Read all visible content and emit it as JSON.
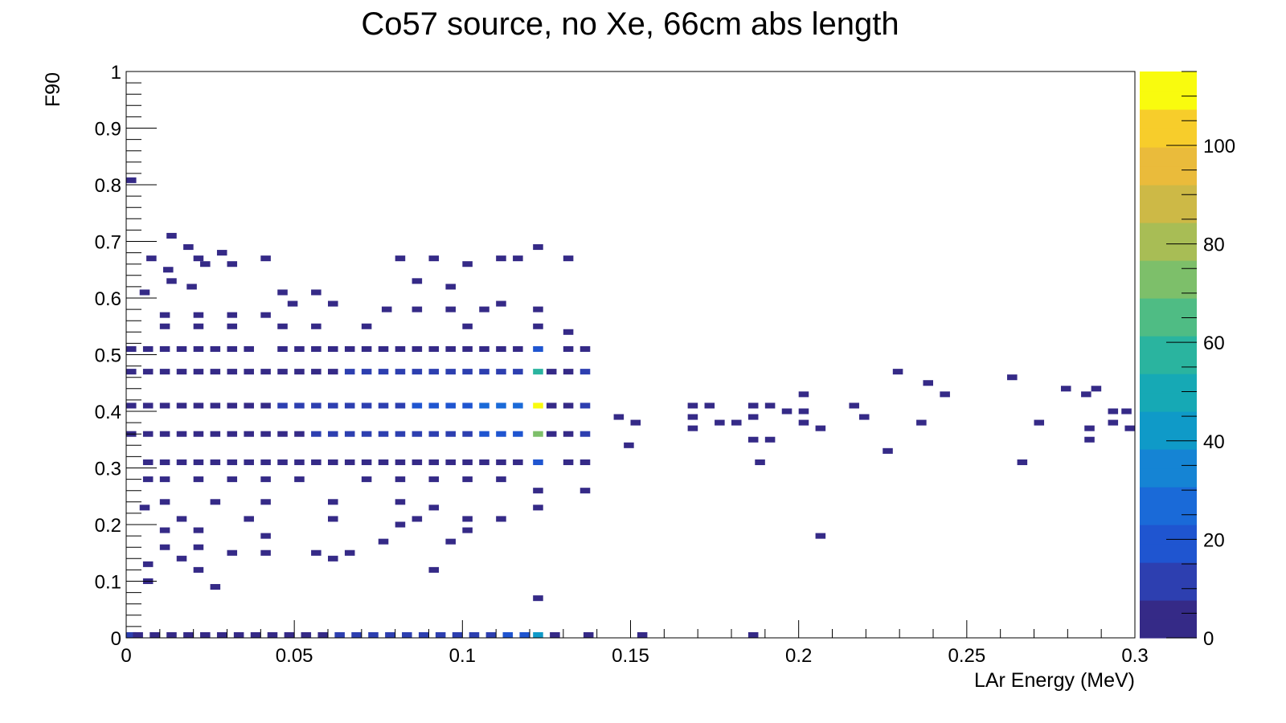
{
  "chart_data": {
    "type": "heatmap",
    "title": "Co57 source, no Xe, 66cm abs length",
    "xlabel": "LAr Energy (MeV)",
    "ylabel": "F90",
    "xlim": [
      0,
      0.3
    ],
    "ylim": [
      0,
      1
    ],
    "zlim": [
      0,
      115
    ],
    "x_ticks": [
      "0",
      "0.05",
      "0.1",
      "0.15",
      "0.2",
      "0.25",
      "0.3"
    ],
    "y_ticks": [
      "0",
      "0.1",
      "0.2",
      "0.3",
      "0.4",
      "0.5",
      "0.6",
      "0.7",
      "0.8",
      "0.9",
      "1"
    ],
    "z_ticks": [
      "0",
      "20",
      "40",
      "60",
      "80",
      "100"
    ],
    "colormap": [
      "#352a87",
      "#2d3fb0",
      "#1f55d0",
      "#1a6ad8",
      "#1584d4",
      "#0f9ac8",
      "#16a9b5",
      "#2ab49f",
      "#4fbc84",
      "#7dbf6a",
      "#a8bd55",
      "#cdb946",
      "#eabb3b",
      "#f7cd2b",
      "#f9fb0e"
    ],
    "grid": false,
    "legend": "colorbar-right",
    "bins": [
      [
        0.0,
        0.803,
        3
      ],
      [
        0.0,
        0.0,
        8
      ],
      [
        0.012,
        0.705,
        2
      ],
      [
        0.017,
        0.685,
        2
      ],
      [
        0.006,
        0.665,
        2
      ],
      [
        0.02,
        0.665,
        2
      ],
      [
        0.022,
        0.655,
        2
      ],
      [
        0.03,
        0.655,
        2
      ],
      [
        0.011,
        0.645,
        2
      ],
      [
        0.027,
        0.675,
        2
      ],
      [
        0.04,
        0.665,
        2
      ],
      [
        0.08,
        0.665,
        3
      ],
      [
        0.09,
        0.665,
        3
      ],
      [
        0.11,
        0.665,
        3
      ],
      [
        0.115,
        0.665,
        3
      ],
      [
        0.121,
        0.685,
        3
      ],
      [
        0.13,
        0.665,
        3
      ],
      [
        0.012,
        0.625,
        2
      ],
      [
        0.018,
        0.615,
        2
      ],
      [
        0.045,
        0.605,
        2
      ],
      [
        0.055,
        0.605,
        2
      ],
      [
        0.085,
        0.625,
        2
      ],
      [
        0.095,
        0.615,
        2
      ],
      [
        0.1,
        0.655,
        2
      ],
      [
        0.004,
        0.605,
        2
      ],
      [
        0.048,
        0.585,
        2
      ],
      [
        0.06,
        0.585,
        2
      ],
      [
        0.11,
        0.585,
        2
      ],
      [
        0.076,
        0.575,
        2
      ],
      [
        0.085,
        0.575,
        2
      ],
      [
        0.095,
        0.575,
        2
      ],
      [
        0.105,
        0.575,
        2
      ],
      [
        0.121,
        0.575,
        3
      ],
      [
        0.01,
        0.565,
        3
      ],
      [
        0.02,
        0.565,
        3
      ],
      [
        0.03,
        0.565,
        3
      ],
      [
        0.04,
        0.565,
        3
      ],
      [
        0.01,
        0.545,
        3
      ],
      [
        0.02,
        0.545,
        4
      ],
      [
        0.03,
        0.545,
        3
      ],
      [
        0.045,
        0.545,
        3
      ],
      [
        0.055,
        0.545,
        3
      ],
      [
        0.07,
        0.545,
        3
      ],
      [
        0.1,
        0.545,
        3
      ],
      [
        0.121,
        0.545,
        3
      ],
      [
        0.13,
        0.535,
        3
      ],
      [
        0.0,
        0.505,
        4
      ],
      [
        0.005,
        0.505,
        5
      ],
      [
        0.01,
        0.505,
        5
      ],
      [
        0.015,
        0.505,
        4
      ],
      [
        0.02,
        0.505,
        5
      ],
      [
        0.025,
        0.505,
        4
      ],
      [
        0.03,
        0.505,
        4
      ],
      [
        0.035,
        0.505,
        4
      ],
      [
        0.045,
        0.505,
        4
      ],
      [
        0.05,
        0.505,
        4
      ],
      [
        0.055,
        0.505,
        4
      ],
      [
        0.06,
        0.505,
        4
      ],
      [
        0.065,
        0.505,
        5
      ],
      [
        0.07,
        0.505,
        5
      ],
      [
        0.075,
        0.505,
        5
      ],
      [
        0.08,
        0.505,
        6
      ],
      [
        0.085,
        0.505,
        6
      ],
      [
        0.09,
        0.505,
        6
      ],
      [
        0.095,
        0.505,
        6
      ],
      [
        0.1,
        0.505,
        6
      ],
      [
        0.105,
        0.505,
        6
      ],
      [
        0.11,
        0.505,
        7
      ],
      [
        0.115,
        0.505,
        7
      ],
      [
        0.121,
        0.505,
        20
      ],
      [
        0.13,
        0.505,
        4
      ],
      [
        0.135,
        0.505,
        3
      ],
      [
        0.0,
        0.465,
        4
      ],
      [
        0.005,
        0.465,
        5
      ],
      [
        0.01,
        0.465,
        5
      ],
      [
        0.015,
        0.465,
        5
      ],
      [
        0.02,
        0.465,
        5
      ],
      [
        0.025,
        0.465,
        5
      ],
      [
        0.03,
        0.465,
        5
      ],
      [
        0.035,
        0.465,
        5
      ],
      [
        0.04,
        0.465,
        5
      ],
      [
        0.045,
        0.465,
        6
      ],
      [
        0.05,
        0.465,
        6
      ],
      [
        0.055,
        0.465,
        7
      ],
      [
        0.06,
        0.465,
        7
      ],
      [
        0.065,
        0.465,
        8
      ],
      [
        0.07,
        0.465,
        8
      ],
      [
        0.075,
        0.465,
        9
      ],
      [
        0.08,
        0.465,
        10
      ],
      [
        0.085,
        0.465,
        10
      ],
      [
        0.09,
        0.465,
        11
      ],
      [
        0.095,
        0.465,
        12
      ],
      [
        0.1,
        0.465,
        12
      ],
      [
        0.105,
        0.465,
        13
      ],
      [
        0.11,
        0.465,
        13
      ],
      [
        0.115,
        0.465,
        14
      ],
      [
        0.121,
        0.465,
        60
      ],
      [
        0.125,
        0.465,
        5
      ],
      [
        0.13,
        0.465,
        5
      ],
      [
        0.135,
        0.465,
        10
      ],
      [
        0.0,
        0.405,
        4
      ],
      [
        0.005,
        0.405,
        5
      ],
      [
        0.01,
        0.405,
        6
      ],
      [
        0.015,
        0.405,
        6
      ],
      [
        0.02,
        0.405,
        6
      ],
      [
        0.025,
        0.405,
        6
      ],
      [
        0.03,
        0.405,
        7
      ],
      [
        0.035,
        0.405,
        7
      ],
      [
        0.04,
        0.405,
        7
      ],
      [
        0.045,
        0.405,
        8
      ],
      [
        0.05,
        0.405,
        8
      ],
      [
        0.055,
        0.405,
        9
      ],
      [
        0.06,
        0.405,
        10
      ],
      [
        0.065,
        0.405,
        11
      ],
      [
        0.07,
        0.405,
        12
      ],
      [
        0.075,
        0.405,
        13
      ],
      [
        0.08,
        0.405,
        14
      ],
      [
        0.085,
        0.405,
        16
      ],
      [
        0.09,
        0.405,
        18
      ],
      [
        0.095,
        0.405,
        20
      ],
      [
        0.1,
        0.405,
        22
      ],
      [
        0.105,
        0.405,
        24
      ],
      [
        0.11,
        0.405,
        26
      ],
      [
        0.115,
        0.405,
        30
      ],
      [
        0.121,
        0.405,
        115
      ],
      [
        0.125,
        0.405,
        6
      ],
      [
        0.13,
        0.405,
        6
      ],
      [
        0.135,
        0.405,
        12
      ],
      [
        0.0,
        0.355,
        4
      ],
      [
        0.005,
        0.355,
        5
      ],
      [
        0.01,
        0.355,
        5
      ],
      [
        0.015,
        0.355,
        5
      ],
      [
        0.02,
        0.355,
        6
      ],
      [
        0.025,
        0.355,
        6
      ],
      [
        0.03,
        0.355,
        6
      ],
      [
        0.035,
        0.355,
        6
      ],
      [
        0.04,
        0.355,
        6
      ],
      [
        0.045,
        0.355,
        7
      ],
      [
        0.05,
        0.355,
        7
      ],
      [
        0.055,
        0.355,
        8
      ],
      [
        0.06,
        0.355,
        8
      ],
      [
        0.065,
        0.355,
        9
      ],
      [
        0.07,
        0.355,
        10
      ],
      [
        0.075,
        0.355,
        11
      ],
      [
        0.08,
        0.355,
        12
      ],
      [
        0.085,
        0.355,
        12
      ],
      [
        0.09,
        0.355,
        13
      ],
      [
        0.095,
        0.355,
        14
      ],
      [
        0.1,
        0.355,
        15
      ],
      [
        0.105,
        0.355,
        16
      ],
      [
        0.11,
        0.355,
        17
      ],
      [
        0.115,
        0.355,
        18
      ],
      [
        0.121,
        0.355,
        70
      ],
      [
        0.125,
        0.355,
        4
      ],
      [
        0.13,
        0.355,
        4
      ],
      [
        0.135,
        0.355,
        8
      ],
      [
        0.005,
        0.305,
        3
      ],
      [
        0.01,
        0.305,
        4
      ],
      [
        0.015,
        0.305,
        4
      ],
      [
        0.02,
        0.305,
        4
      ],
      [
        0.025,
        0.305,
        4
      ],
      [
        0.03,
        0.305,
        4
      ],
      [
        0.035,
        0.305,
        4
      ],
      [
        0.04,
        0.305,
        4
      ],
      [
        0.045,
        0.305,
        4
      ],
      [
        0.05,
        0.305,
        4
      ],
      [
        0.055,
        0.305,
        5
      ],
      [
        0.06,
        0.305,
        5
      ],
      [
        0.065,
        0.305,
        5
      ],
      [
        0.07,
        0.305,
        5
      ],
      [
        0.075,
        0.305,
        5
      ],
      [
        0.08,
        0.305,
        6
      ],
      [
        0.085,
        0.305,
        6
      ],
      [
        0.09,
        0.305,
        6
      ],
      [
        0.095,
        0.305,
        6
      ],
      [
        0.1,
        0.305,
        6
      ],
      [
        0.105,
        0.305,
        7
      ],
      [
        0.11,
        0.305,
        7
      ],
      [
        0.115,
        0.305,
        7
      ],
      [
        0.121,
        0.305,
        20
      ],
      [
        0.13,
        0.305,
        3
      ],
      [
        0.135,
        0.305,
        4
      ],
      [
        0.005,
        0.275,
        3
      ],
      [
        0.01,
        0.275,
        3
      ],
      [
        0.02,
        0.275,
        3
      ],
      [
        0.03,
        0.275,
        3
      ],
      [
        0.04,
        0.275,
        3
      ],
      [
        0.05,
        0.275,
        3
      ],
      [
        0.07,
        0.275,
        3
      ],
      [
        0.08,
        0.275,
        3
      ],
      [
        0.09,
        0.275,
        3
      ],
      [
        0.1,
        0.275,
        3
      ],
      [
        0.11,
        0.275,
        3
      ],
      [
        0.121,
        0.255,
        3
      ],
      [
        0.135,
        0.255,
        3
      ],
      [
        0.01,
        0.235,
        2
      ],
      [
        0.025,
        0.235,
        2
      ],
      [
        0.04,
        0.235,
        2
      ],
      [
        0.06,
        0.235,
        2
      ],
      [
        0.08,
        0.235,
        2
      ],
      [
        0.09,
        0.225,
        2
      ],
      [
        0.004,
        0.225,
        2
      ],
      [
        0.015,
        0.205,
        2
      ],
      [
        0.035,
        0.205,
        2
      ],
      [
        0.06,
        0.205,
        2
      ],
      [
        0.085,
        0.205,
        2
      ],
      [
        0.1,
        0.205,
        2
      ],
      [
        0.11,
        0.205,
        2
      ],
      [
        0.121,
        0.225,
        2
      ],
      [
        0.01,
        0.185,
        2
      ],
      [
        0.02,
        0.185,
        2
      ],
      [
        0.04,
        0.175,
        2
      ],
      [
        0.08,
        0.195,
        2
      ],
      [
        0.1,
        0.185,
        2
      ],
      [
        0.01,
        0.155,
        2
      ],
      [
        0.02,
        0.155,
        2
      ],
      [
        0.03,
        0.145,
        2
      ],
      [
        0.04,
        0.145,
        2
      ],
      [
        0.055,
        0.145,
        2
      ],
      [
        0.065,
        0.145,
        2
      ],
      [
        0.075,
        0.165,
        2
      ],
      [
        0.095,
        0.165,
        2
      ],
      [
        0.005,
        0.125,
        2
      ],
      [
        0.015,
        0.135,
        2
      ],
      [
        0.02,
        0.115,
        2
      ],
      [
        0.06,
        0.135,
        2
      ],
      [
        0.09,
        0.115,
        2
      ],
      [
        0.005,
        0.095,
        2
      ],
      [
        0.025,
        0.085,
        2
      ],
      [
        0.121,
        0.065,
        2
      ],
      [
        0.002,
        0.0,
        6
      ],
      [
        0.007,
        0.0,
        6
      ],
      [
        0.012,
        0.0,
        6
      ],
      [
        0.017,
        0.0,
        6
      ],
      [
        0.022,
        0.0,
        6
      ],
      [
        0.027,
        0.0,
        6
      ],
      [
        0.032,
        0.0,
        6
      ],
      [
        0.037,
        0.0,
        6
      ],
      [
        0.042,
        0.0,
        6
      ],
      [
        0.047,
        0.0,
        6
      ],
      [
        0.052,
        0.0,
        7
      ],
      [
        0.057,
        0.0,
        7
      ],
      [
        0.062,
        0.0,
        8
      ],
      [
        0.067,
        0.0,
        8
      ],
      [
        0.072,
        0.0,
        9
      ],
      [
        0.077,
        0.0,
        9
      ],
      [
        0.082,
        0.0,
        10
      ],
      [
        0.087,
        0.0,
        11
      ],
      [
        0.092,
        0.0,
        12
      ],
      [
        0.097,
        0.0,
        13
      ],
      [
        0.102,
        0.0,
        14
      ],
      [
        0.107,
        0.0,
        15
      ],
      [
        0.112,
        0.0,
        16
      ],
      [
        0.117,
        0.0,
        18
      ],
      [
        0.121,
        0.0,
        40
      ],
      [
        0.126,
        0.0,
        6
      ],
      [
        0.136,
        0.0,
        5
      ],
      [
        0.152,
        0.0,
        4
      ],
      [
        0.185,
        0.0,
        4
      ],
      [
        0.145,
        0.385,
        3
      ],
      [
        0.15,
        0.375,
        3
      ],
      [
        0.148,
        0.335,
        3
      ],
      [
        0.167,
        0.405,
        3
      ],
      [
        0.172,
        0.405,
        3
      ],
      [
        0.167,
        0.385,
        3
      ],
      [
        0.175,
        0.375,
        3
      ],
      [
        0.18,
        0.375,
        3
      ],
      [
        0.167,
        0.365,
        3
      ],
      [
        0.185,
        0.405,
        3
      ],
      [
        0.19,
        0.405,
        3
      ],
      [
        0.185,
        0.385,
        3
      ],
      [
        0.195,
        0.395,
        3
      ],
      [
        0.185,
        0.345,
        3
      ],
      [
        0.19,
        0.345,
        3
      ],
      [
        0.187,
        0.305,
        3
      ],
      [
        0.2,
        0.425,
        3
      ],
      [
        0.2,
        0.395,
        3
      ],
      [
        0.2,
        0.375,
        3
      ],
      [
        0.205,
        0.365,
        3
      ],
      [
        0.215,
        0.405,
        3
      ],
      [
        0.218,
        0.385,
        3
      ],
      [
        0.205,
        0.175,
        3
      ],
      [
        0.228,
        0.465,
        3
      ],
      [
        0.225,
        0.325,
        3
      ],
      [
        0.237,
        0.445,
        3
      ],
      [
        0.242,
        0.425,
        3
      ],
      [
        0.235,
        0.375,
        3
      ],
      [
        0.262,
        0.455,
        3
      ],
      [
        0.265,
        0.305,
        3
      ],
      [
        0.27,
        0.375,
        3
      ],
      [
        0.278,
        0.435,
        3
      ],
      [
        0.284,
        0.425,
        3
      ],
      [
        0.287,
        0.435,
        3
      ],
      [
        0.285,
        0.365,
        3
      ],
      [
        0.285,
        0.345,
        3
      ],
      [
        0.292,
        0.395,
        3
      ],
      [
        0.296,
        0.395,
        3
      ],
      [
        0.292,
        0.375,
        3
      ],
      [
        0.3,
        0.365,
        3
      ]
    ]
  }
}
